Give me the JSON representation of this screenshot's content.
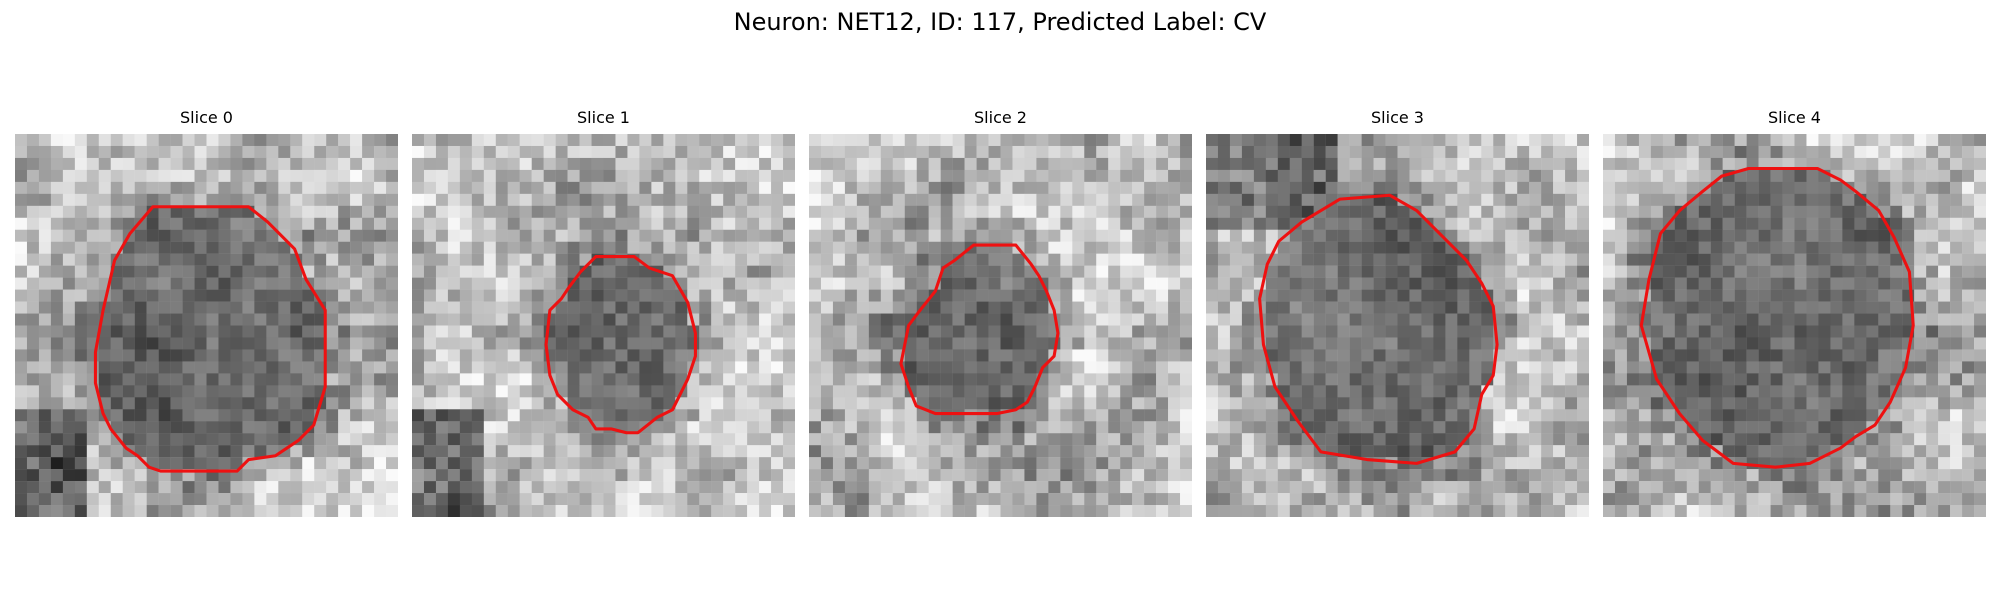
{
  "title": "Neuron: NET12, ID: 117, Predicted Label: CV",
  "contour_color": "#ee1111",
  "slices": [
    {
      "label": "Slice 0",
      "dark_patch": "lower-left",
      "contour": [
        [
          0.36,
          0.19
        ],
        [
          0.61,
          0.19
        ],
        [
          0.66,
          0.23
        ],
        [
          0.73,
          0.3
        ],
        [
          0.76,
          0.38
        ],
        [
          0.81,
          0.46
        ],
        [
          0.81,
          0.66
        ],
        [
          0.78,
          0.76
        ],
        [
          0.74,
          0.8
        ],
        [
          0.71,
          0.82
        ],
        [
          0.68,
          0.84
        ],
        [
          0.61,
          0.85
        ],
        [
          0.58,
          0.88
        ],
        [
          0.54,
          0.88
        ],
        [
          0.38,
          0.88
        ],
        [
          0.35,
          0.87
        ],
        [
          0.32,
          0.84
        ],
        [
          0.29,
          0.82
        ],
        [
          0.25,
          0.77
        ],
        [
          0.23,
          0.73
        ],
        [
          0.21,
          0.65
        ],
        [
          0.21,
          0.57
        ],
        [
          0.23,
          0.46
        ],
        [
          0.26,
          0.33
        ],
        [
          0.3,
          0.26
        ]
      ]
    },
    {
      "label": "Slice 1",
      "dark_patch": "lower-left",
      "contour": [
        [
          0.48,
          0.32
        ],
        [
          0.58,
          0.32
        ],
        [
          0.62,
          0.35
        ],
        [
          0.68,
          0.37
        ],
        [
          0.72,
          0.44
        ],
        [
          0.74,
          0.52
        ],
        [
          0.74,
          0.58
        ],
        [
          0.72,
          0.64
        ],
        [
          0.68,
          0.72
        ],
        [
          0.64,
          0.74
        ],
        [
          0.59,
          0.78
        ],
        [
          0.56,
          0.78
        ],
        [
          0.52,
          0.77
        ],
        [
          0.48,
          0.77
        ],
        [
          0.46,
          0.74
        ],
        [
          0.42,
          0.72
        ],
        [
          0.38,
          0.68
        ],
        [
          0.36,
          0.63
        ],
        [
          0.35,
          0.55
        ],
        [
          0.36,
          0.46
        ],
        [
          0.39,
          0.43
        ],
        [
          0.41,
          0.4
        ],
        [
          0.44,
          0.36
        ]
      ]
    },
    {
      "label": "Slice 2",
      "dark_patch": "none",
      "contour": [
        [
          0.43,
          0.29
        ],
        [
          0.54,
          0.29
        ],
        [
          0.58,
          0.34
        ],
        [
          0.6,
          0.37
        ],
        [
          0.62,
          0.41
        ],
        [
          0.64,
          0.46
        ],
        [
          0.65,
          0.52
        ],
        [
          0.64,
          0.58
        ],
        [
          0.61,
          0.61
        ],
        [
          0.59,
          0.66
        ],
        [
          0.57,
          0.7
        ],
        [
          0.54,
          0.72
        ],
        [
          0.49,
          0.73
        ],
        [
          0.44,
          0.73
        ],
        [
          0.33,
          0.73
        ],
        [
          0.28,
          0.71
        ],
        [
          0.26,
          0.66
        ],
        [
          0.24,
          0.6
        ],
        [
          0.26,
          0.5
        ],
        [
          0.29,
          0.46
        ],
        [
          0.33,
          0.41
        ],
        [
          0.35,
          0.35
        ],
        [
          0.38,
          0.33
        ]
      ]
    },
    {
      "label": "Slice 3",
      "dark_patch": "upper-left",
      "contour": [
        [
          0.35,
          0.17
        ],
        [
          0.48,
          0.16
        ],
        [
          0.55,
          0.2
        ],
        [
          0.61,
          0.26
        ],
        [
          0.68,
          0.33
        ],
        [
          0.72,
          0.39
        ],
        [
          0.75,
          0.45
        ],
        [
          0.76,
          0.55
        ],
        [
          0.75,
          0.63
        ],
        [
          0.72,
          0.68
        ],
        [
          0.7,
          0.77
        ],
        [
          0.65,
          0.83
        ],
        [
          0.55,
          0.86
        ],
        [
          0.42,
          0.85
        ],
        [
          0.3,
          0.83
        ],
        [
          0.24,
          0.75
        ],
        [
          0.18,
          0.66
        ],
        [
          0.15,
          0.55
        ],
        [
          0.14,
          0.43
        ],
        [
          0.16,
          0.34
        ],
        [
          0.19,
          0.28
        ],
        [
          0.25,
          0.23
        ],
        [
          0.3,
          0.2
        ]
      ]
    },
    {
      "label": "Slice 4",
      "dark_patch": "none",
      "contour": [
        [
          0.38,
          0.09
        ],
        [
          0.56,
          0.09
        ],
        [
          0.62,
          0.12
        ],
        [
          0.66,
          0.15
        ],
        [
          0.72,
          0.2
        ],
        [
          0.76,
          0.27
        ],
        [
          0.8,
          0.36
        ],
        [
          0.81,
          0.5
        ],
        [
          0.79,
          0.61
        ],
        [
          0.75,
          0.7
        ],
        [
          0.71,
          0.76
        ],
        [
          0.66,
          0.79
        ],
        [
          0.62,
          0.82
        ],
        [
          0.54,
          0.86
        ],
        [
          0.45,
          0.87
        ],
        [
          0.34,
          0.86
        ],
        [
          0.26,
          0.8
        ],
        [
          0.2,
          0.73
        ],
        [
          0.14,
          0.64
        ],
        [
          0.1,
          0.5
        ],
        [
          0.12,
          0.38
        ],
        [
          0.15,
          0.26
        ],
        [
          0.2,
          0.2
        ],
        [
          0.26,
          0.15
        ],
        [
          0.31,
          0.11
        ]
      ]
    }
  ]
}
